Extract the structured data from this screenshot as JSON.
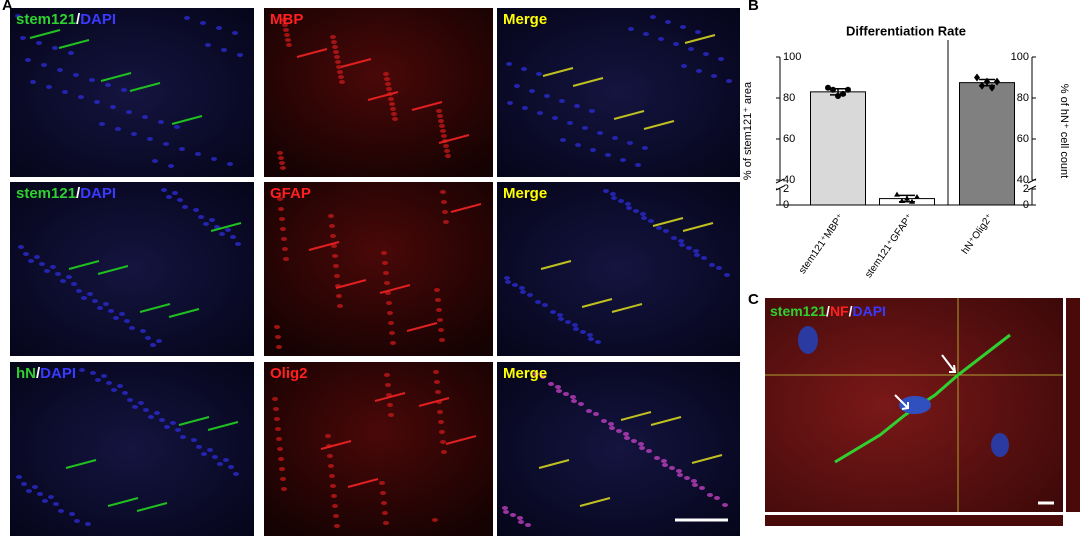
{
  "panel_a": {
    "letter": "A",
    "images": [
      {
        "label": [
          {
            "text": "stem121",
            "color": "#2fd12f"
          },
          {
            "text": "/",
            "color": "#ffffff"
          },
          {
            "text": "DAPI",
            "color": "#3a3aff"
          }
        ]
      },
      {
        "label": [
          {
            "text": "MBP",
            "color": "#ff2020"
          }
        ]
      },
      {
        "label": [
          {
            "text": "Merge",
            "color": "#ffff00"
          }
        ]
      },
      {
        "label": [
          {
            "text": "stem121",
            "color": "#2fd12f"
          },
          {
            "text": "/",
            "color": "#ffffff"
          },
          {
            "text": "DAPI",
            "color": "#3a3aff"
          }
        ]
      },
      {
        "label": [
          {
            "text": "GFAP",
            "color": "#ff2020"
          }
        ]
      },
      {
        "label": [
          {
            "text": "Merge",
            "color": "#ffff00"
          }
        ]
      },
      {
        "label": [
          {
            "text": "hN",
            "color": "#2fd12f"
          },
          {
            "text": "/",
            "color": "#ffffff"
          },
          {
            "text": "DAPI",
            "color": "#3a3aff"
          }
        ]
      },
      {
        "label": [
          {
            "text": "Olig2",
            "color": "#ff2020"
          }
        ]
      },
      {
        "label": [
          {
            "text": "Merge",
            "color": "#ffff00"
          }
        ]
      }
    ]
  },
  "chart_data": {
    "type": "bar",
    "letter": "B",
    "title": "Differentiation Rate",
    "ylabel": "% of stem121⁺ area",
    "y2label": "% of hN⁺ cell count",
    "categories": [
      "stem121⁺MBP⁺",
      "stem121⁺GFAP⁺",
      "hN⁺Olig2⁺"
    ],
    "values": [
      83,
      0.8,
      87.5
    ],
    "errors": [
      1.5,
      0.4,
      1.5
    ],
    "points": [
      [
        85,
        84,
        81,
        82,
        84
      ],
      [
        1.3,
        0.5,
        0.8,
        0.4,
        1.0
      ],
      [
        90,
        86,
        88,
        85,
        88
      ]
    ],
    "axes": [
      "y",
      "y",
      "y2"
    ],
    "colors": [
      "#d9d9d9",
      "#ffffff",
      "#808080"
    ],
    "ylim": [
      0,
      100
    ],
    "yticks": [
      0,
      2,
      40,
      60,
      80,
      100
    ],
    "y2lim": [
      0,
      100
    ],
    "y2ticks": [
      0,
      2,
      40,
      60,
      80,
      100
    ],
    "axis_break": true
  },
  "panel_c": {
    "letter": "C",
    "label": [
      {
        "text": "stem121",
        "color": "#2fd12f"
      },
      {
        "text": "/",
        "color": "#ffffff"
      },
      {
        "text": "NF",
        "color": "#ff2020"
      },
      {
        "text": "/",
        "color": "#ffffff"
      },
      {
        "text": "DAPI",
        "color": "#3a3aff"
      }
    ]
  }
}
